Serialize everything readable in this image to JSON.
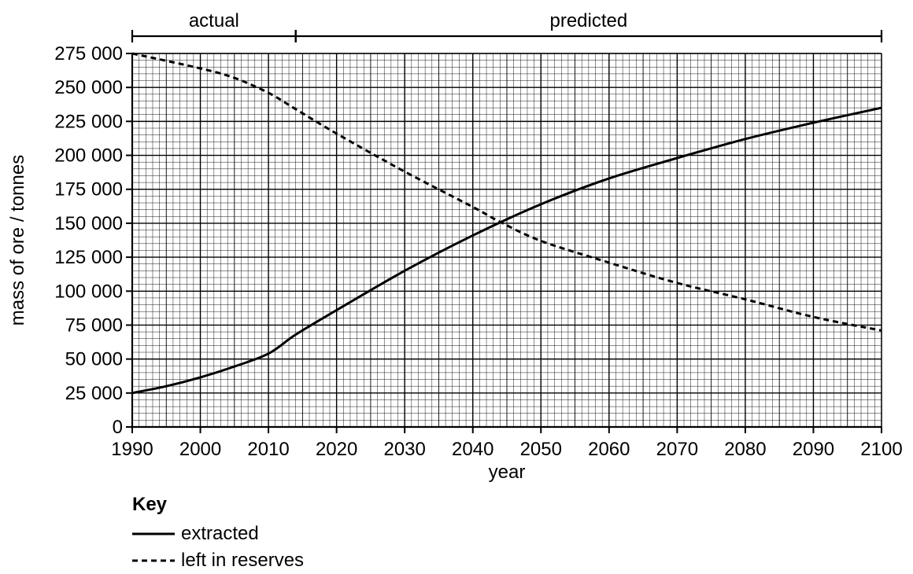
{
  "chart_data": {
    "type": "line",
    "xlabel": "year",
    "ylabel": "mass of ore / tonnes",
    "xlim": [
      1990,
      2100
    ],
    "ylim": [
      0,
      275000
    ],
    "x_ticks": [
      "1990",
      "2000",
      "2010",
      "2020",
      "2030",
      "2040",
      "2050",
      "2060",
      "2070",
      "2080",
      "2090",
      "2100"
    ],
    "y_ticks": [
      "0",
      "25 000",
      "50 000",
      "75 000",
      "100 000",
      "125 000",
      "150 000",
      "175 000",
      "200 000",
      "225 000",
      "250 000",
      "275 000"
    ],
    "grid": "fine graph paper (1 year by 5 000 tonnes minor squares)",
    "periods": [
      {
        "label": "actual",
        "start": 1990,
        "end": 2014
      },
      {
        "label": "predicted",
        "start": 2014,
        "end": 2100
      }
    ],
    "series": [
      {
        "name": "extracted",
        "style": "solid",
        "x": [
          1990,
          1995,
          2000,
          2005,
          2010,
          2014,
          2020,
          2030,
          2040,
          2050,
          2060,
          2070,
          2080,
          2090,
          2100
        ],
        "y": [
          25000,
          30000,
          36500,
          44500,
          54000,
          68000,
          86000,
          115000,
          141000,
          164000,
          183000,
          198000,
          212000,
          224000,
          235000
        ]
      },
      {
        "name": "left in reserves",
        "style": "dashed",
        "x": [
          1990,
          2000,
          2005,
          2010,
          2014,
          2020,
          2030,
          2040,
          2044,
          2050,
          2060,
          2070,
          2080,
          2090,
          2100
        ],
        "y": [
          275000,
          264000,
          257000,
          246000,
          234000,
          216000,
          188000,
          162000,
          151000,
          137000,
          121000,
          106000,
          94000,
          81000,
          71000
        ]
      }
    ]
  },
  "key": {
    "title": "Key",
    "entries": [
      {
        "label": "extracted",
        "style": "solid"
      },
      {
        "label": "left in reserves",
        "style": "dashed"
      }
    ]
  }
}
